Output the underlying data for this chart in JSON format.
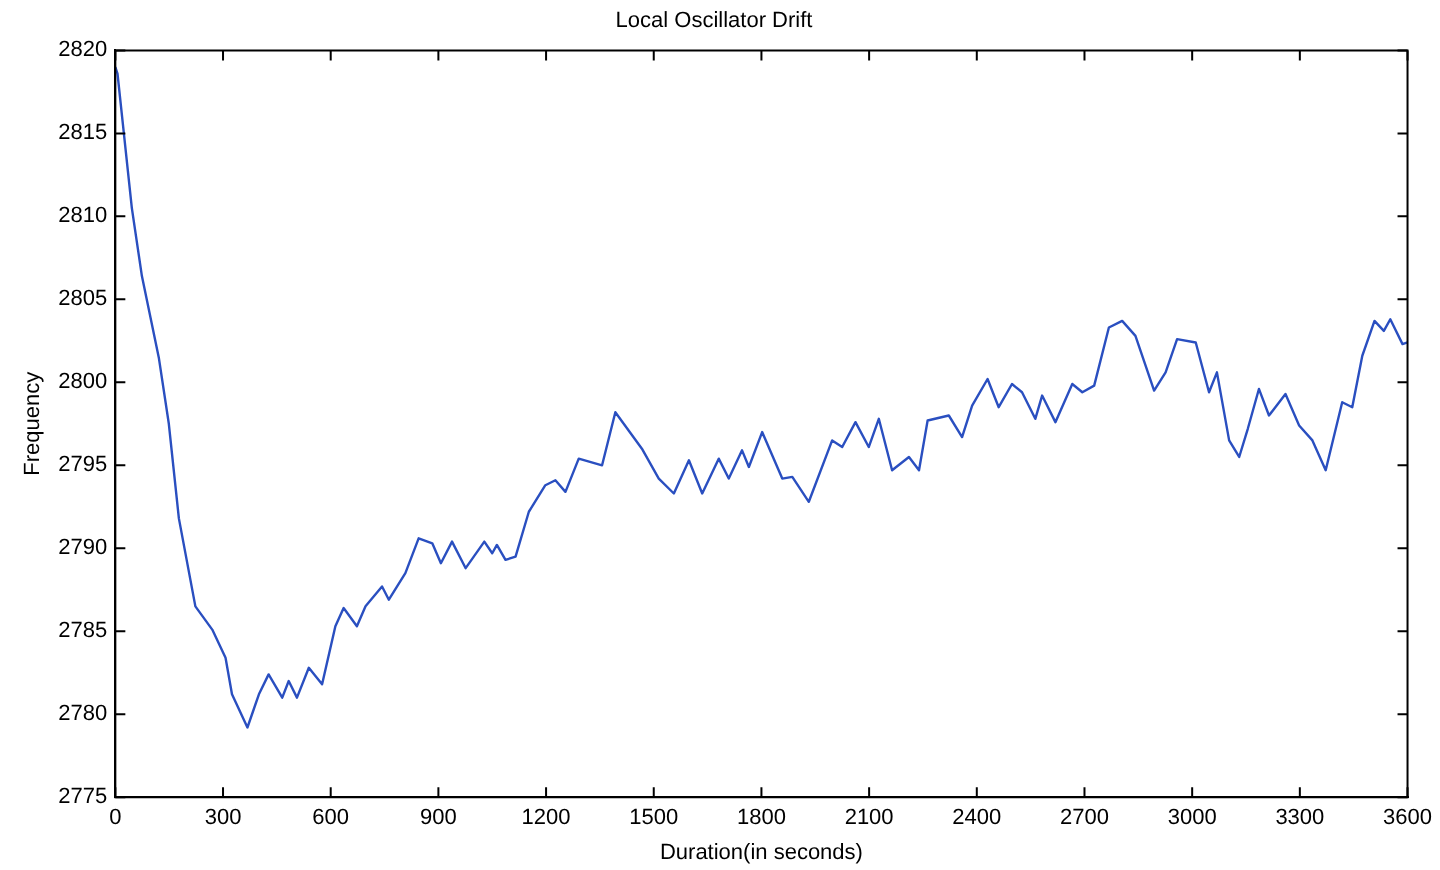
{
  "chart_data": {
    "type": "line",
    "title": "Local Oscillator Drift",
    "xlabel": "Duration(in seconds)",
    "ylabel": "Frequency",
    "xlim": [
      0,
      3600
    ],
    "xticks": [
      0,
      300,
      600,
      900,
      1200,
      1500,
      1800,
      2100,
      2400,
      2700,
      3000,
      3300,
      3600
    ],
    "ylim": [
      2775,
      2820
    ],
    "yticks": [
      2775,
      2780,
      2785,
      2790,
      2795,
      2800,
      2805,
      2810,
      2815,
      2820
    ],
    "grid": false,
    "legend": false,
    "marker": "none",
    "line_style": "solid",
    "series": [
      {
        "color": "#2a4fc0",
        "x": [
          0,
          6,
          46,
          74,
          121,
          149,
          177,
          223,
          270,
          307,
          325,
          368,
          400,
          427,
          465,
          483,
          506,
          539,
          576,
          613,
          636,
          673,
          697,
          743,
          762,
          808,
          845,
          883,
          907,
          938,
          976,
          1028,
          1050,
          1063,
          1087,
          1115,
          1152,
          1198,
          1226,
          1254,
          1291,
          1356,
          1393,
          1430,
          1467,
          1514,
          1556,
          1598,
          1635,
          1681,
          1709,
          1746,
          1765,
          1802,
          1858,
          1886,
          1932,
          1997,
          2025,
          2062,
          2099,
          2127,
          2164,
          2211,
          2239,
          2263,
          2322,
          2359,
          2387,
          2430,
          2461,
          2498,
          2526,
          2563,
          2582,
          2619,
          2666,
          2694,
          2727,
          2768,
          2805,
          2842,
          2894,
          2926,
          2958,
          3010,
          3047,
          3069,
          3103,
          3131,
          3155,
          3186,
          3214,
          3260,
          3298,
          3335,
          3372,
          3418,
          3446,
          3474,
          3508,
          3534,
          3552,
          3586,
          3600
        ],
        "values": [
          2819,
          2818.6,
          2810.5,
          2806.4,
          2801.5,
          2797.5,
          2791.8,
          2786.5,
          2785.1,
          2783.4,
          2781.2,
          2779.2,
          2781.2,
          2782.4,
          2781,
          2782,
          2781,
          2782.8,
          2781.8,
          2785.3,
          2786.4,
          2785.3,
          2786.5,
          2787.7,
          2786.9,
          2788.5,
          2790.6,
          2790.3,
          2789.1,
          2790.4,
          2788.8,
          2790.4,
          2789.7,
          2790.2,
          2789.3,
          2789.5,
          2792.2,
          2793.8,
          2794.1,
          2793.4,
          2795.4,
          2795,
          2798.2,
          2797.1,
          2796,
          2794.2,
          2793.3,
          2795.3,
          2793.3,
          2795.4,
          2794.2,
          2795.9,
          2794.9,
          2797,
          2794.2,
          2794.3,
          2792.8,
          2796.5,
          2796.1,
          2797.6,
          2796.1,
          2797.8,
          2794.7,
          2795.5,
          2794.7,
          2797.7,
          2798,
          2796.7,
          2798.6,
          2800.2,
          2798.5,
          2799.9,
          2799.4,
          2797.8,
          2799.2,
          2797.6,
          2799.9,
          2799.4,
          2799.8,
          2803.3,
          2803.7,
          2802.8,
          2799.5,
          2800.6,
          2802.6,
          2802.4,
          2799.4,
          2800.6,
          2796.5,
          2795.5,
          2797.2,
          2799.6,
          2798,
          2799.3,
          2797.4,
          2796.5,
          2794.7,
          2798.8,
          2798.5,
          2801.6,
          2803.7,
          2803.1,
          2803.8,
          2802.3,
          2802.4
        ]
      }
    ]
  }
}
